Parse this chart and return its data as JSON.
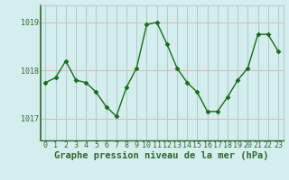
{
  "x": [
    0,
    1,
    2,
    3,
    4,
    5,
    6,
    7,
    8,
    9,
    10,
    11,
    12,
    13,
    14,
    15,
    16,
    17,
    18,
    19,
    20,
    21,
    22,
    23
  ],
  "y": [
    1017.75,
    1017.85,
    1018.2,
    1017.8,
    1017.75,
    1017.55,
    1017.25,
    1017.05,
    1017.65,
    1018.05,
    1018.95,
    1019.0,
    1018.55,
    1018.05,
    1017.75,
    1017.55,
    1017.15,
    1017.15,
    1017.45,
    1017.8,
    1018.05,
    1018.75,
    1018.75,
    1018.4
  ],
  "line_color": "#1a6b1a",
  "marker": "D",
  "marker_size": 2.5,
  "bg_color": "#d4eeee",
  "grid_color_v": "#b0cece",
  "grid_color_h": "#e0b8b8",
  "ylabel_ticks": [
    1017,
    1018,
    1019
  ],
  "xtick_labels": [
    "0",
    "1",
    "2",
    "3",
    "4",
    "5",
    "6",
    "7",
    "8",
    "9",
    "10",
    "11",
    "12",
    "13",
    "14",
    "15",
    "16",
    "17",
    "18",
    "19",
    "20",
    "21",
    "22",
    "23"
  ],
  "xlabel": "Graphe pression niveau de la mer (hPa)",
  "xlim": [
    -0.5,
    23.5
  ],
  "ylim": [
    1016.55,
    1019.35
  ],
  "tick_fontsize": 6,
  "label_fontsize": 7.5,
  "spine_color": "#336633",
  "tick_color": "#336633"
}
